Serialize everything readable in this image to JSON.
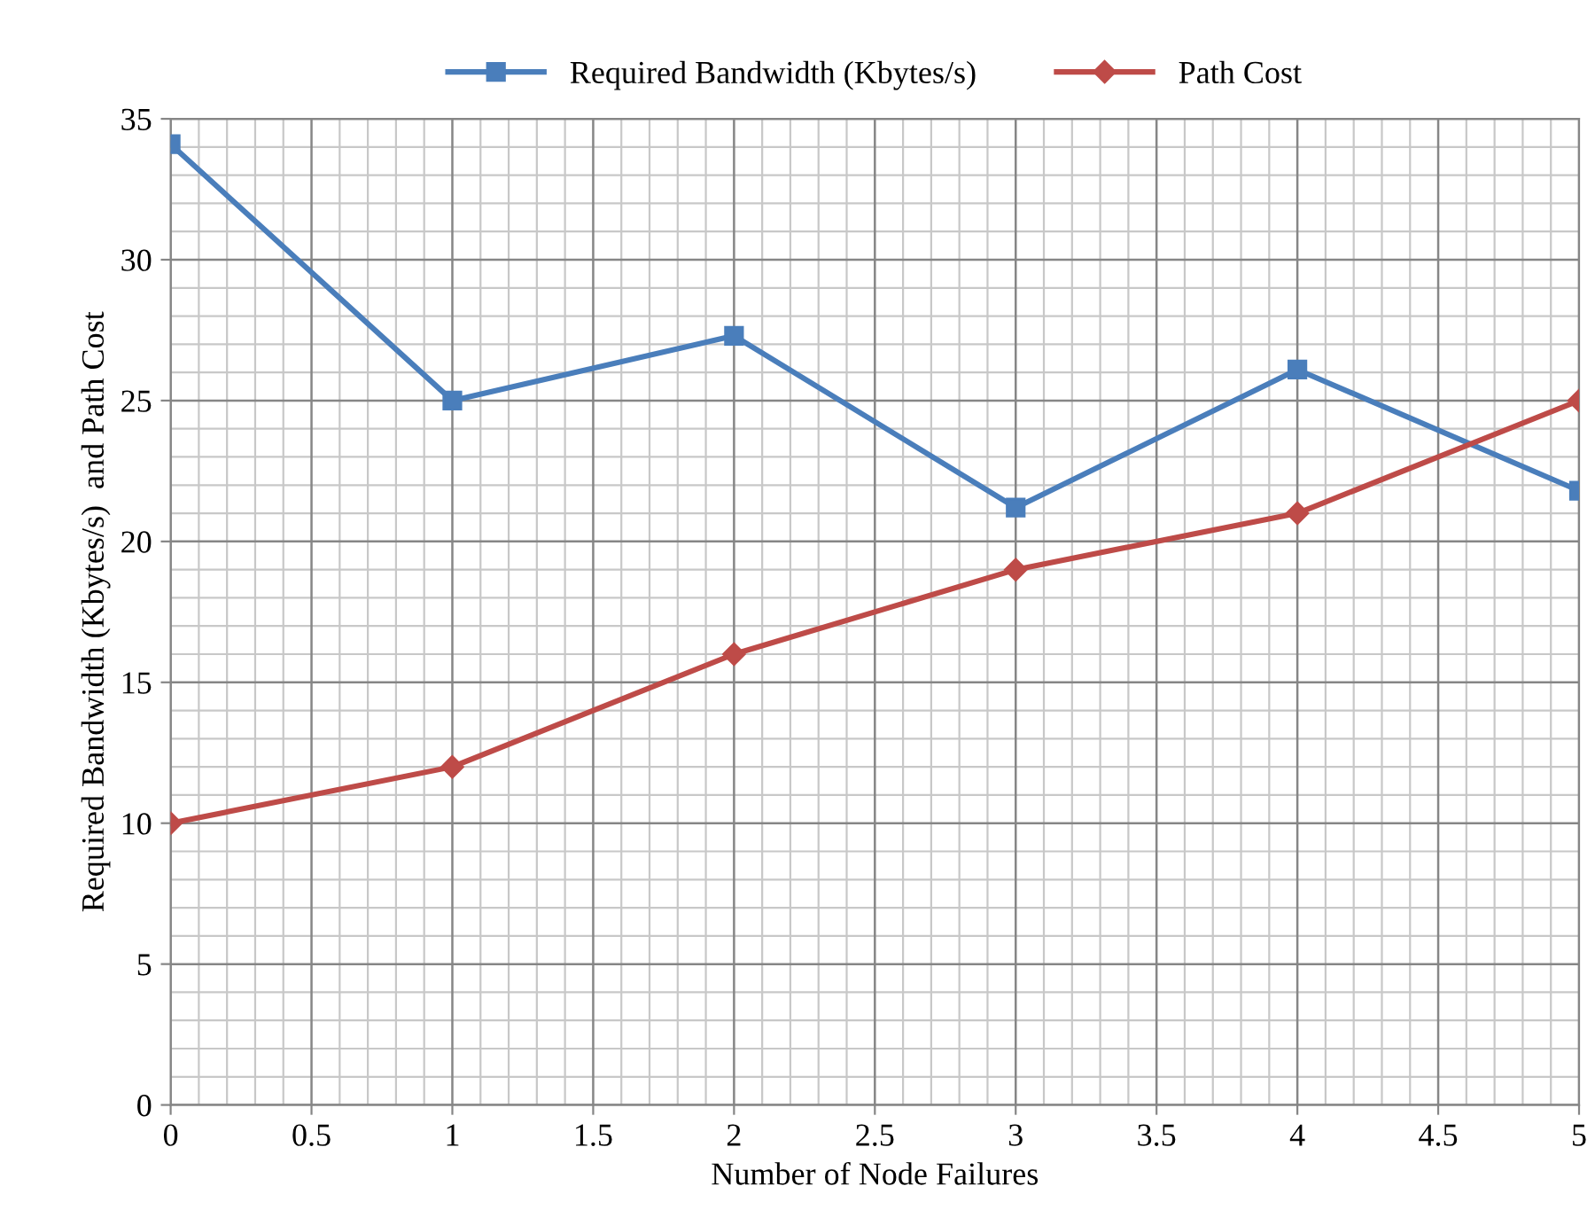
{
  "chart_data": {
    "type": "line",
    "xlabel": "Number of Node Failures",
    "ylabel": "Required Bandwidth (Kbytes/s)  and Path Cost",
    "x": [
      0,
      1,
      2,
      3,
      4,
      5
    ],
    "series": [
      {
        "name": "Required Bandwidth (Kbytes/s)",
        "color": "#4a7ebb",
        "values": [
          34.1,
          25,
          27.3,
          21.2,
          26.1,
          21.8
        ],
        "marker": "square"
      },
      {
        "name": "Path Cost",
        "color": "#be4b48",
        "values": [
          10,
          12,
          16,
          19,
          21,
          25
        ],
        "marker": "diamond"
      }
    ],
    "xlim": [
      0,
      5
    ],
    "xticks": [
      0,
      0.5,
      1,
      1.5,
      2,
      2.5,
      3,
      3.5,
      4,
      4.5,
      5
    ],
    "ylim": [
      0,
      35
    ],
    "yticks": [
      0,
      5,
      10,
      15,
      20,
      25,
      30,
      35
    ],
    "grid": true,
    "legend": "top",
    "line_style": "solid"
  }
}
